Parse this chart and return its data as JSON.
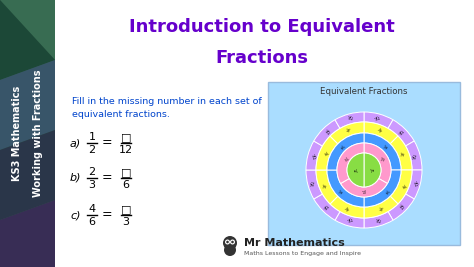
{
  "bg_color": "#2a3a4a",
  "title_line1": "Introduction to Equivalent",
  "title_line2": "Fractions",
  "title_color": "#6600cc",
  "sidebar_colors": [
    "#2d5a3d",
    "#3a6b4a",
    "#4a7a5a",
    "#3a4a6b",
    "#2d3a5a",
    "#4a3a6b",
    "#5a2d5a"
  ],
  "sidebar_text1": "KS3 Mathematics",
  "sidebar_text2": "Working with Fractions",
  "sidebar_text_color": "#ffffff",
  "instruction": "Fill in the missing number in each set of",
  "instruction2": "equivalent fractions.",
  "instruction_color": "#0044cc",
  "questions": [
    {
      "label": "a)",
      "frac1_num": "1",
      "frac1_den": "2",
      "frac2_num": "□",
      "frac2_den": "12"
    },
    {
      "label": "b)",
      "frac1_num": "2",
      "frac1_den": "3",
      "frac2_num": "□",
      "frac2_den": "6"
    },
    {
      "label": "c)",
      "frac1_num": "4",
      "frac1_den": "6",
      "frac2_num": "□",
      "frac2_den": "3"
    }
  ],
  "eq_fractions_title": "Equivalent Fractions",
  "eq_bg": "#aaddff",
  "ring_data": [
    {
      "outer": 58,
      "inner": 48,
      "color": "#cc99ff",
      "n": 12,
      "label": "¹⁄₁₂"
    },
    {
      "outer": 48,
      "inner": 37,
      "color": "#ffff44",
      "n": 8,
      "label": "¹⁄₈"
    },
    {
      "outer": 37,
      "inner": 27,
      "color": "#4499ff",
      "n": 4,
      "label": "¹⁄₄"
    },
    {
      "outer": 27,
      "inner": 17,
      "color": "#ff99cc",
      "n": 3,
      "label": "¹⁄₃"
    },
    {
      "outer": 17,
      "inner": 0,
      "color": "#88dd44",
      "n": 2,
      "label": "¹⁄₂"
    }
  ],
  "logo_text1": "Mr Mathematics",
  "logo_text2": "Maths Lessons to Engage and Inspire",
  "logo_color": "#222222"
}
